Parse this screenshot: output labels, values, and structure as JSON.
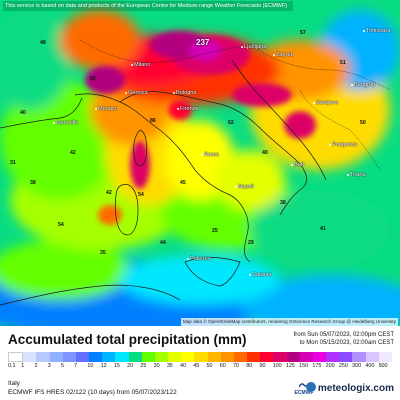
{
  "map": {
    "notice": "This service is based on data and products of the European Centre for Medium-range Weather Forecasts (ECMWF)",
    "attribution": "Map data © OpenStreetMap contributors, rendering GIScience Research Group @ Heidelberg University",
    "max_value": "237",
    "cities": [
      {
        "name": "Ljubljana"
      },
      {
        "name": "Zagreb"
      },
      {
        "name": "Milano"
      },
      {
        "name": "Genova"
      },
      {
        "name": "Bologna"
      },
      {
        "name": "Monaco"
      },
      {
        "name": "Firenze"
      },
      {
        "name": "Marseille"
      },
      {
        "name": "Sarajevo"
      },
      {
        "name": "Beograd"
      },
      {
        "name": "Timisoara"
      },
      {
        "name": "Podgorica"
      },
      {
        "name": "Tirana"
      },
      {
        "name": "Roma"
      },
      {
        "name": "Napoli"
      },
      {
        "name": "Bari"
      },
      {
        "name": "Palermo"
      },
      {
        "name": "Catania"
      }
    ],
    "values": [
      "48",
      "60",
      "57",
      "51",
      "40",
      "86",
      "42",
      "38",
      "31",
      "42",
      "54",
      "45",
      "62",
      "40",
      "38",
      "41",
      "25",
      "54",
      "35",
      "44",
      "50",
      "29"
    ]
  },
  "legend": {
    "title": "Accumulated total precipitation (mm)",
    "period_from": "from Sun 05/07/2023, 02:00pm CEST",
    "period_to": "to Mon 05/15/2023, 02:00am CEST",
    "scale": [
      {
        "label": "0.1",
        "color": "#ffffff"
      },
      {
        "label": "1",
        "color": "#d6e2ff"
      },
      {
        "label": "2",
        "color": "#b5c9ff"
      },
      {
        "label": "3",
        "color": "#8eb2ff"
      },
      {
        "label": "5",
        "color": "#7f96ff"
      },
      {
        "label": "7",
        "color": "#6370ff"
      },
      {
        "label": "10",
        "color": "#0080ff"
      },
      {
        "label": "12",
        "color": "#00b2ff"
      },
      {
        "label": "15",
        "color": "#00e7ff"
      },
      {
        "label": "20",
        "color": "#08dc82"
      },
      {
        "label": "25",
        "color": "#63ff00"
      },
      {
        "label": "30",
        "color": "#a6ff00"
      },
      {
        "label": "35",
        "color": "#e3ff00"
      },
      {
        "label": "40",
        "color": "#ffff00"
      },
      {
        "label": "45",
        "color": "#ffdc00"
      },
      {
        "label": "50",
        "color": "#ffb700"
      },
      {
        "label": "60",
        "color": "#ff9300"
      },
      {
        "label": "70",
        "color": "#ff6a00"
      },
      {
        "label": "80",
        "color": "#ff3000"
      },
      {
        "label": "90",
        "color": "#ff0033"
      },
      {
        "label": "100",
        "color": "#dc0066"
      },
      {
        "label": "125",
        "color": "#b20080"
      },
      {
        "label": "150",
        "color": "#d400b5"
      },
      {
        "label": "175",
        "color": "#ea00e0"
      },
      {
        "label": "200",
        "color": "#b030ff"
      },
      {
        "label": "250",
        "color": "#8a4bff"
      },
      {
        "label": "300",
        "color": "#b090ff"
      },
      {
        "label": "400",
        "color": "#d9c6ff"
      },
      {
        "label": "500",
        "color": "#f0e8ff"
      }
    ]
  },
  "footer": {
    "region": "Italy",
    "model": "ECMWF IFS HRES 02/122 (10 days) from 05/07/2023/122",
    "ecmwf_label": "ECMWF",
    "brand": "meteologix.com"
  }
}
